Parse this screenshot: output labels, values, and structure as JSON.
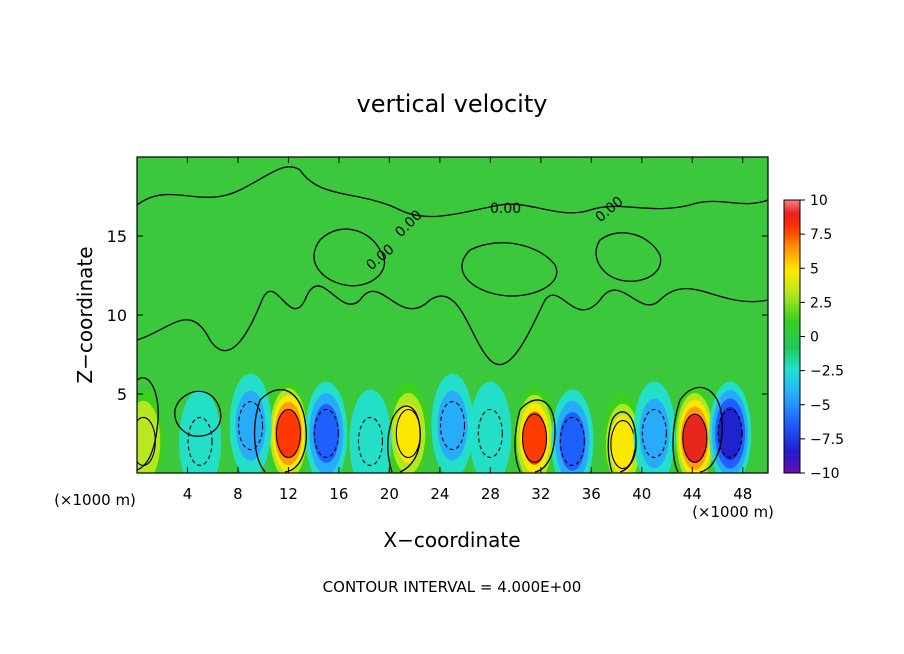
{
  "chart_data": {
    "type": "heatmap",
    "title": "vertical velocity",
    "xlabel": "X−coordinate",
    "ylabel": "Z−coordinate",
    "x_unit_left": "(×1000 m)",
    "x_unit_right": "(×1000 m)",
    "xlim": [
      0,
      50
    ],
    "ylim": [
      0,
      20
    ],
    "xticks": [
      4,
      8,
      12,
      16,
      20,
      24,
      28,
      32,
      36,
      40,
      44,
      48
    ],
    "yticks": [
      5,
      10,
      15
    ],
    "xtick_labels": [
      "4",
      "8",
      "12",
      "16",
      "20",
      "24",
      "28",
      "32",
      "36",
      "40",
      "44",
      "48"
    ],
    "ytick_labels": [
      "5",
      "10",
      "15"
    ],
    "colorbar": {
      "min": -10,
      "max": 10,
      "tick_values": [
        10,
        7.5,
        5,
        2.5,
        0,
        -2.5,
        -5,
        -7.5,
        -10
      ],
      "tick_labels": [
        "10",
        "7.5",
        "5",
        "2.5",
        "0",
        "−2.5",
        "−5",
        "−7.5",
        "−10"
      ],
      "colors": [
        "#6a0dad",
        "#1f1fcc",
        "#1e5cff",
        "#2aa8ff",
        "#22e0d0",
        "#20c858",
        "#3ad020",
        "#b8e820",
        "#ffe800",
        "#ff9a00",
        "#ff3300",
        "#e82020",
        "#ff8080"
      ]
    },
    "contour_labels": [
      "0.00",
      "0.00",
      "0.00",
      "0.00"
    ],
    "contour_interval_text": "CONTOUR INTERVAL = 4.000E+00",
    "features": [
      {
        "x": 12.0,
        "z": 2.5,
        "value": 9.0
      },
      {
        "x": 21.5,
        "z": 2.5,
        "value": 6.5
      },
      {
        "x": 31.5,
        "z": 2.2,
        "value": 8.5
      },
      {
        "x": 38.5,
        "z": 1.8,
        "value": 6.0
      },
      {
        "x": 44.2,
        "z": 2.2,
        "value": 9.5
      },
      {
        "x": 0.5,
        "z": 2.0,
        "value": 5.0
      },
      {
        "x": 15.0,
        "z": 2.5,
        "value": -6.0
      },
      {
        "x": 34.5,
        "z": 2.0,
        "value": -5.5
      },
      {
        "x": 47.0,
        "z": 2.5,
        "value": -8.0
      },
      {
        "x": 41.0,
        "z": 2.5,
        "value": -3.5
      },
      {
        "x": 25.0,
        "z": 3.0,
        "value": -3.0
      },
      {
        "x": 5.0,
        "z": 2.0,
        "value": -2.5
      },
      {
        "x": 9.0,
        "z": 3.0,
        "value": -3.0
      },
      {
        "x": 18.5,
        "z": 2.0,
        "value": -2.0
      },
      {
        "x": 28.0,
        "z": 2.5,
        "value": -2.5
      }
    ]
  }
}
